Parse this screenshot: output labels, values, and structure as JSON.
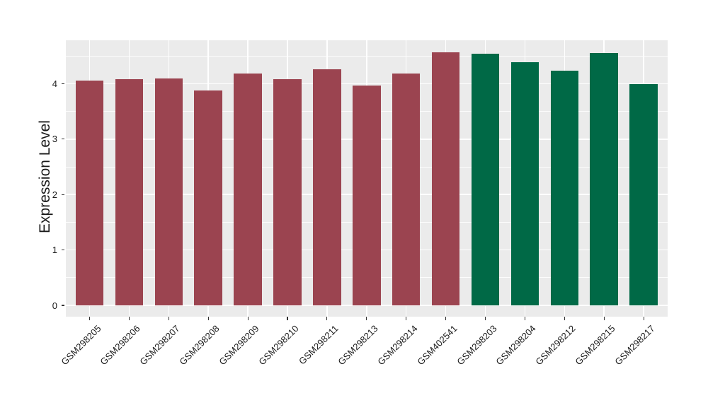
{
  "colors": {
    "bar_group_1": "#9B4450",
    "bar_group_2": "#006946",
    "plot_background": "#EBEBEB",
    "grid": "#FFFFFF",
    "axis_text": "#1A1A1A",
    "tick_marks": "#333333"
  },
  "chart_data": {
    "type": "bar",
    "title": "",
    "xlabel": "",
    "ylabel": "Expression Level",
    "categories": [
      "GSM298205",
      "GSM298206",
      "GSM298207",
      "GSM298208",
      "GSM298209",
      "GSM298210",
      "GSM298211",
      "GSM298213",
      "GSM298214",
      "GSM402541",
      "GSM298203",
      "GSM298204",
      "GSM298212",
      "GSM298215",
      "GSM298217"
    ],
    "values": [
      4.05,
      4.08,
      4.09,
      3.88,
      4.18,
      4.08,
      4.26,
      3.97,
      4.19,
      4.57,
      4.54,
      4.39,
      4.23,
      4.55,
      3.99
    ],
    "bar_groups": [
      "bar_group_1",
      "bar_group_1",
      "bar_group_1",
      "bar_group_1",
      "bar_group_1",
      "bar_group_1",
      "bar_group_1",
      "bar_group_1",
      "bar_group_1",
      "bar_group_1",
      "bar_group_2",
      "bar_group_2",
      "bar_group_2",
      "bar_group_2",
      "bar_group_2"
    ],
    "y_ticks": [
      0,
      1,
      2,
      3,
      4
    ],
    "y_minor_ticks": [
      0.5,
      1.5,
      2.5,
      3.5,
      4.5
    ],
    "ylim": [
      0,
      4.78
    ],
    "x_tick_angle": 45,
    "grid": "horizontal major + minor, vertical at category centers",
    "legend_position": "none"
  }
}
